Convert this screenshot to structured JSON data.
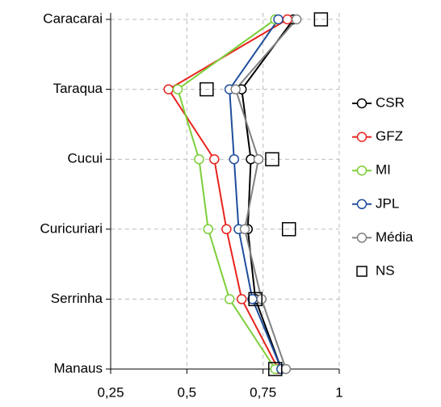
{
  "chart_data": {
    "type": "line",
    "categories": [
      "Caracarai",
      "Taraqua",
      "Cucui",
      "Curicuriari",
      "Serrinha",
      "Manaus"
    ],
    "xlim": [
      0.25,
      1
    ],
    "xticks": [
      {
        "value": 0.25,
        "label": "0,25"
      },
      {
        "value": 0.5,
        "label": "0,5"
      },
      {
        "value": 0.75,
        "label": "0,75"
      },
      1
    ],
    "grid": true,
    "legend": "right",
    "series": [
      {
        "name": "CSR",
        "color": "#000000",
        "values": [
          0.85,
          0.68,
          0.71,
          0.7,
          0.725,
          0.81
        ]
      },
      {
        "name": "GFZ",
        "color": "#e8231e",
        "values": [
          0.83,
          0.44,
          0.59,
          0.63,
          0.68,
          0.8
        ]
      },
      {
        "name": "MI",
        "color": "#7dcf3a",
        "values": [
          0.79,
          0.47,
          0.54,
          0.57,
          0.64,
          0.79
        ]
      },
      {
        "name": "JPL",
        "color": "#1f4e9c",
        "values": [
          0.8,
          0.64,
          0.655,
          0.67,
          0.715,
          0.81
        ]
      },
      {
        "name": "Média",
        "color": "#808080",
        "values": [
          0.86,
          0.66,
          0.735,
          0.69,
          0.745,
          0.825
        ]
      },
      {
        "name": "NS",
        "color": "#000000",
        "line": false,
        "values": [
          0.94,
          0.565,
          0.78,
          0.835,
          0.725,
          0.79
        ]
      }
    ]
  }
}
